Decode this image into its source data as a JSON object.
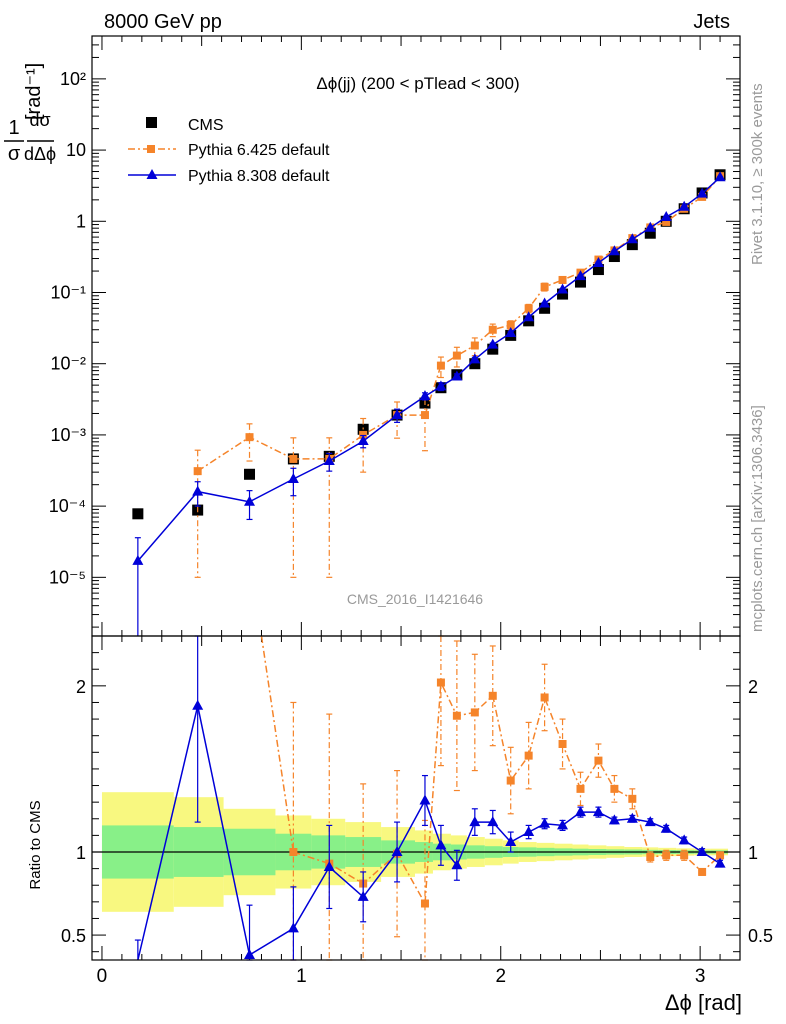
{
  "header": {
    "left": "8000 GeV pp",
    "right": "Jets"
  },
  "side_labels": {
    "rivet": "Rivet 3.1.10, ≥ 300k events",
    "mcplots": "mcplots.cern.ch [arXiv:1306.3436]"
  },
  "watermark": "CMS_2016_I1421646",
  "colors": {
    "cms": "#000000",
    "pythia6": "#f5842a",
    "pythia8": "#0000d8",
    "band_inner": "#88f088",
    "band_outer": "#f8f880"
  },
  "chart_data": [
    {
      "type": "scatter",
      "title": "Δϕ(jj) (200 < pTlead <  300)",
      "ylabel_parts": {
        "fraction_num": "1",
        "fraction_num2": "dσ",
        "fraction_den": "σ",
        "fraction_den2": "dΔϕ",
        "unit": "[rad⁻¹]"
      },
      "yscale": "log",
      "xlim": [
        -0.05,
        3.2
      ],
      "ylim": [
        1.5e-06,
        400
      ],
      "yticks": [
        {
          "v": 1e-05,
          "label": "10⁻⁵"
        },
        {
          "v": 0.0001,
          "label": "10⁻⁴"
        },
        {
          "v": 0.001,
          "label": "10⁻³"
        },
        {
          "v": 0.01,
          "label": "10⁻²"
        },
        {
          "v": 0.1,
          "label": "10⁻¹"
        },
        {
          "v": 1,
          "label": "1"
        },
        {
          "v": 10,
          "label": "10"
        },
        {
          "v": 100,
          "label": "10²"
        }
      ],
      "legend_position": "top-left",
      "series": [
        {
          "name": "CMS",
          "style": "square",
          "x": [
            0.18,
            0.48,
            0.74,
            0.96,
            1.14,
            1.31,
            1.48,
            1.62,
            1.7,
            1.78,
            1.87,
            1.96,
            2.05,
            2.14,
            2.22,
            2.31,
            2.4,
            2.49,
            2.57,
            2.66,
            2.75,
            2.83,
            2.92,
            3.01,
            3.1
          ],
          "y": [
            7.8e-05,
            8.8e-05,
            0.00028,
            0.00046,
            0.0005,
            0.0012,
            0.0019,
            0.0028,
            0.0046,
            0.007,
            0.01,
            0.016,
            0.025,
            0.04,
            0.06,
            0.095,
            0.14,
            0.21,
            0.32,
            0.47,
            0.68,
            1.0,
            1.5,
            2.5,
            4.5
          ]
        },
        {
          "name": "Pythia 6.425 default",
          "style": "dashdot",
          "x": [
            0.48,
            0.74,
            0.96,
            1.14,
            1.31,
            1.48,
            1.62,
            1.7,
            1.78,
            1.87,
            1.96,
            2.05,
            2.14,
            2.22,
            2.31,
            2.4,
            2.49,
            2.57,
            2.66,
            2.75,
            2.83,
            2.92,
            3.01,
            3.1
          ],
          "y": [
            0.00031,
            0.00093,
            0.00046,
            0.00046,
            0.001,
            0.0019,
            0.0019,
            0.0094,
            0.013,
            0.018,
            0.03,
            0.035,
            0.06,
            0.12,
            0.15,
            0.19,
            0.29,
            0.39,
            0.58,
            0.82,
            0.98,
            1.5,
            2.2,
            4.3
          ],
          "yerr": [
            0.0003,
            0.0005,
            0.00045,
            0.00045,
            0.0007,
            0.001,
            0.0013,
            0.003,
            0.004,
            0.005,
            0.006,
            0.005,
            0.008,
            0.015,
            0.015,
            0.015,
            0.02,
            0.03,
            0.03,
            0.04,
            0.05,
            0.06,
            0.08,
            0.1
          ]
        },
        {
          "name": "Pythia 8.308 default",
          "style": "solid",
          "x": [
            0.18,
            0.48,
            0.74,
            0.96,
            1.14,
            1.31,
            1.48,
            1.62,
            1.7,
            1.78,
            1.87,
            1.96,
            2.05,
            2.14,
            2.22,
            2.31,
            2.4,
            2.49,
            2.57,
            2.66,
            2.75,
            2.83,
            2.92,
            3.01,
            3.1
          ],
          "y": [
            1.7e-05,
            0.00016,
            0.000115,
            0.00024,
            0.00043,
            0.00082,
            0.0019,
            0.0035,
            0.0048,
            0.0066,
            0.0115,
            0.0185,
            0.027,
            0.045,
            0.07,
            0.11,
            0.17,
            0.26,
            0.38,
            0.56,
            0.81,
            1.15,
            1.6,
            2.45,
            4.15
          ],
          "yerr": [
            1.9e-05,
            6e-05,
            5e-05,
            0.0001,
            0.00012,
            0.00016,
            0.0004,
            0.0004,
            0.0006,
            0.0006,
            0.0008,
            0.001,
            0.0012,
            0.0015,
            0.002,
            0.003,
            0.005,
            0.006,
            0.008,
            0.01,
            0.015,
            0.02,
            0.03,
            0.04,
            0.06
          ]
        }
      ]
    },
    {
      "type": "line",
      "xlabel": "Δϕ [rad]",
      "ylabel": "Ratio to CMS",
      "xlim": [
        -0.05,
        3.2
      ],
      "ylim": [
        0.35,
        2.3
      ],
      "xticks": [
        0,
        1,
        2,
        3
      ],
      "yticks": [
        {
          "v": 0.5,
          "label": "0.5"
        },
        {
          "v": 1,
          "label": "1"
        },
        {
          "v": 2,
          "label": "2"
        }
      ],
      "bands": {
        "edges": [
          0.0,
          0.36,
          0.61,
          0.87,
          1.05,
          1.22,
          1.4,
          1.57,
          1.66,
          1.75,
          1.83,
          1.92,
          2.01,
          2.09,
          2.18,
          2.27,
          2.36,
          2.44,
          2.53,
          2.62,
          2.71,
          2.79,
          2.88,
          2.97,
          3.05,
          3.14
        ],
        "inner": [
          0.16,
          0.15,
          0.14,
          0.11,
          0.1,
          0.09,
          0.07,
          0.06,
          0.05,
          0.045,
          0.04,
          0.035,
          0.03,
          0.028,
          0.025,
          0.022,
          0.02,
          0.018,
          0.016,
          0.015,
          0.013,
          0.012,
          0.011,
          0.01,
          0.01
        ],
        "outer": [
          0.36,
          0.33,
          0.26,
          0.22,
          0.2,
          0.18,
          0.15,
          0.13,
          0.11,
          0.1,
          0.09,
          0.08,
          0.07,
          0.06,
          0.055,
          0.05,
          0.045,
          0.04,
          0.035,
          0.03,
          0.028,
          0.025,
          0.022,
          0.02,
          0.02
        ]
      },
      "series": [
        {
          "name": "Pythia 6.425 default",
          "style": "dashdot",
          "x": [
            0.96,
            1.14,
            1.31,
            1.48,
            1.62,
            1.7,
            1.78,
            1.87,
            1.96,
            2.05,
            2.14,
            2.22,
            2.31,
            2.4,
            2.49,
            2.57,
            2.66,
            2.75,
            2.83,
            2.92,
            3.01,
            3.1
          ],
          "y": [
            1.0,
            0.93,
            0.81,
            0.99,
            0.69,
            2.02,
            1.82,
            1.84,
            1.94,
            1.43,
            1.58,
            1.93,
            1.65,
            1.38,
            1.55,
            1.38,
            1.32,
            0.97,
            0.98,
            0.98,
            0.88,
            0.98
          ],
          "yerr": [
            0.9,
            0.9,
            0.6,
            0.5,
            0.5,
            0.5,
            0.45,
            0.35,
            0.3,
            0.2,
            0.2,
            0.2,
            0.15,
            0.1,
            0.1,
            0.08,
            0.06,
            0.03,
            0.03,
            0.03,
            0.02,
            0.02
          ]
        },
        {
          "name": "Pythia 8.308 default",
          "style": "solid",
          "x": [
            0.18,
            0.48,
            0.74,
            0.96,
            1.14,
            1.31,
            1.48,
            1.62,
            1.7,
            1.78,
            1.87,
            1.96,
            2.05,
            2.14,
            2.22,
            2.31,
            2.4,
            2.49,
            2.57,
            2.66,
            2.75,
            2.83,
            2.92,
            3.01,
            3.1
          ],
          "y": [
            0.22,
            1.88,
            0.38,
            0.54,
            0.91,
            0.73,
            1.0,
            1.31,
            1.04,
            0.92,
            1.18,
            1.18,
            1.06,
            1.12,
            1.17,
            1.16,
            1.24,
            1.24,
            1.19,
            1.2,
            1.18,
            1.14,
            1.07,
            1.0,
            0.93
          ],
          "yerr": [
            0.25,
            0.7,
            0.3,
            0.25,
            0.25,
            0.15,
            0.18,
            0.15,
            0.12,
            0.09,
            0.08,
            0.07,
            0.06,
            0.04,
            0.03,
            0.03,
            0.03,
            0.03,
            0.02,
            0.02,
            0.02,
            0.02,
            0.02,
            0.02,
            0.02
          ]
        }
      ]
    }
  ]
}
